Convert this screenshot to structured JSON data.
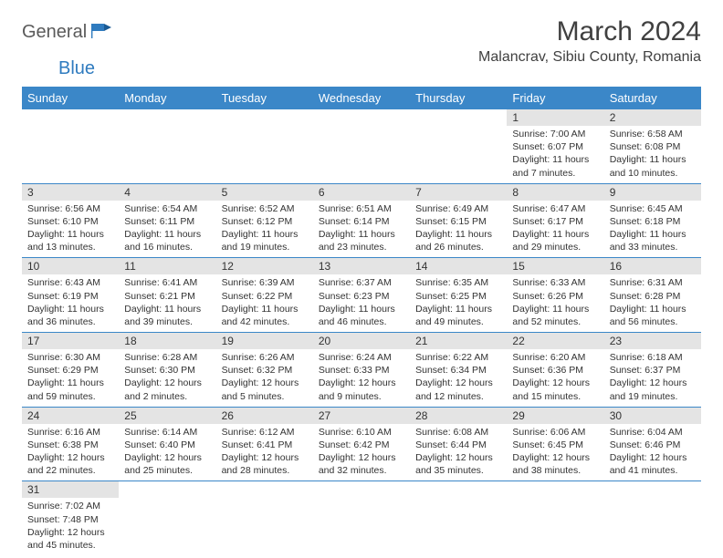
{
  "logo": {
    "part1": "General",
    "part2": "Blue"
  },
  "title": "March 2024",
  "location": "Malancrav, Sibiu County, Romania",
  "colors": {
    "header_bg": "#3b87c8",
    "header_text": "#ffffff",
    "daynum_bg": "#e4e4e4",
    "border": "#3b87c8",
    "logo_gray": "#5a5a5a",
    "logo_blue": "#2f7bbf"
  },
  "weekdays": [
    "Sunday",
    "Monday",
    "Tuesday",
    "Wednesday",
    "Thursday",
    "Friday",
    "Saturday"
  ],
  "weeks": [
    [
      null,
      null,
      null,
      null,
      null,
      {
        "n": "1",
        "sr": "Sunrise: 7:00 AM",
        "ss": "Sunset: 6:07 PM",
        "dl": "Daylight: 11 hours and 7 minutes."
      },
      {
        "n": "2",
        "sr": "Sunrise: 6:58 AM",
        "ss": "Sunset: 6:08 PM",
        "dl": "Daylight: 11 hours and 10 minutes."
      }
    ],
    [
      {
        "n": "3",
        "sr": "Sunrise: 6:56 AM",
        "ss": "Sunset: 6:10 PM",
        "dl": "Daylight: 11 hours and 13 minutes."
      },
      {
        "n": "4",
        "sr": "Sunrise: 6:54 AM",
        "ss": "Sunset: 6:11 PM",
        "dl": "Daylight: 11 hours and 16 minutes."
      },
      {
        "n": "5",
        "sr": "Sunrise: 6:52 AM",
        "ss": "Sunset: 6:12 PM",
        "dl": "Daylight: 11 hours and 19 minutes."
      },
      {
        "n": "6",
        "sr": "Sunrise: 6:51 AM",
        "ss": "Sunset: 6:14 PM",
        "dl": "Daylight: 11 hours and 23 minutes."
      },
      {
        "n": "7",
        "sr": "Sunrise: 6:49 AM",
        "ss": "Sunset: 6:15 PM",
        "dl": "Daylight: 11 hours and 26 minutes."
      },
      {
        "n": "8",
        "sr": "Sunrise: 6:47 AM",
        "ss": "Sunset: 6:17 PM",
        "dl": "Daylight: 11 hours and 29 minutes."
      },
      {
        "n": "9",
        "sr": "Sunrise: 6:45 AM",
        "ss": "Sunset: 6:18 PM",
        "dl": "Daylight: 11 hours and 33 minutes."
      }
    ],
    [
      {
        "n": "10",
        "sr": "Sunrise: 6:43 AM",
        "ss": "Sunset: 6:19 PM",
        "dl": "Daylight: 11 hours and 36 minutes."
      },
      {
        "n": "11",
        "sr": "Sunrise: 6:41 AM",
        "ss": "Sunset: 6:21 PM",
        "dl": "Daylight: 11 hours and 39 minutes."
      },
      {
        "n": "12",
        "sr": "Sunrise: 6:39 AM",
        "ss": "Sunset: 6:22 PM",
        "dl": "Daylight: 11 hours and 42 minutes."
      },
      {
        "n": "13",
        "sr": "Sunrise: 6:37 AM",
        "ss": "Sunset: 6:23 PM",
        "dl": "Daylight: 11 hours and 46 minutes."
      },
      {
        "n": "14",
        "sr": "Sunrise: 6:35 AM",
        "ss": "Sunset: 6:25 PM",
        "dl": "Daylight: 11 hours and 49 minutes."
      },
      {
        "n": "15",
        "sr": "Sunrise: 6:33 AM",
        "ss": "Sunset: 6:26 PM",
        "dl": "Daylight: 11 hours and 52 minutes."
      },
      {
        "n": "16",
        "sr": "Sunrise: 6:31 AM",
        "ss": "Sunset: 6:28 PM",
        "dl": "Daylight: 11 hours and 56 minutes."
      }
    ],
    [
      {
        "n": "17",
        "sr": "Sunrise: 6:30 AM",
        "ss": "Sunset: 6:29 PM",
        "dl": "Daylight: 11 hours and 59 minutes."
      },
      {
        "n": "18",
        "sr": "Sunrise: 6:28 AM",
        "ss": "Sunset: 6:30 PM",
        "dl": "Daylight: 12 hours and 2 minutes."
      },
      {
        "n": "19",
        "sr": "Sunrise: 6:26 AM",
        "ss": "Sunset: 6:32 PM",
        "dl": "Daylight: 12 hours and 5 minutes."
      },
      {
        "n": "20",
        "sr": "Sunrise: 6:24 AM",
        "ss": "Sunset: 6:33 PM",
        "dl": "Daylight: 12 hours and 9 minutes."
      },
      {
        "n": "21",
        "sr": "Sunrise: 6:22 AM",
        "ss": "Sunset: 6:34 PM",
        "dl": "Daylight: 12 hours and 12 minutes."
      },
      {
        "n": "22",
        "sr": "Sunrise: 6:20 AM",
        "ss": "Sunset: 6:36 PM",
        "dl": "Daylight: 12 hours and 15 minutes."
      },
      {
        "n": "23",
        "sr": "Sunrise: 6:18 AM",
        "ss": "Sunset: 6:37 PM",
        "dl": "Daylight: 12 hours and 19 minutes."
      }
    ],
    [
      {
        "n": "24",
        "sr": "Sunrise: 6:16 AM",
        "ss": "Sunset: 6:38 PM",
        "dl": "Daylight: 12 hours and 22 minutes."
      },
      {
        "n": "25",
        "sr": "Sunrise: 6:14 AM",
        "ss": "Sunset: 6:40 PM",
        "dl": "Daylight: 12 hours and 25 minutes."
      },
      {
        "n": "26",
        "sr": "Sunrise: 6:12 AM",
        "ss": "Sunset: 6:41 PM",
        "dl": "Daylight: 12 hours and 28 minutes."
      },
      {
        "n": "27",
        "sr": "Sunrise: 6:10 AM",
        "ss": "Sunset: 6:42 PM",
        "dl": "Daylight: 12 hours and 32 minutes."
      },
      {
        "n": "28",
        "sr": "Sunrise: 6:08 AM",
        "ss": "Sunset: 6:44 PM",
        "dl": "Daylight: 12 hours and 35 minutes."
      },
      {
        "n": "29",
        "sr": "Sunrise: 6:06 AM",
        "ss": "Sunset: 6:45 PM",
        "dl": "Daylight: 12 hours and 38 minutes."
      },
      {
        "n": "30",
        "sr": "Sunrise: 6:04 AM",
        "ss": "Sunset: 6:46 PM",
        "dl": "Daylight: 12 hours and 41 minutes."
      }
    ],
    [
      {
        "n": "31",
        "sr": "Sunrise: 7:02 AM",
        "ss": "Sunset: 7:48 PM",
        "dl": "Daylight: 12 hours and 45 minutes."
      },
      null,
      null,
      null,
      null,
      null,
      null
    ]
  ]
}
